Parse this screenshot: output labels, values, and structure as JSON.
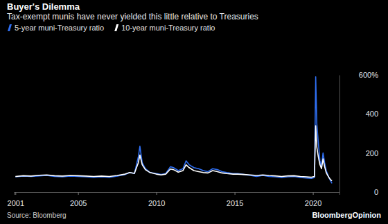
{
  "chart_data": {
    "type": "line",
    "title": "Buyer's Dilemma",
    "subtitle": "Tax-exempt munis have never yielded this little relative to Treasuries",
    "source": "Source: Bloomberg",
    "logo": "BloombergOpinion",
    "legend": "top-left",
    "grid": false,
    "x": [
      2001.0,
      2001.5,
      2002.0,
      2002.5,
      2003.0,
      2003.5,
      2004.0,
      2004.5,
      2005.0,
      2005.5,
      2006.0,
      2006.5,
      2007.0,
      2007.5,
      2008.0,
      2008.3,
      2008.6,
      2008.85,
      2008.95,
      2009.1,
      2009.3,
      2009.6,
      2010.0,
      2010.3,
      2010.6,
      2010.9,
      2011.1,
      2011.4,
      2011.7,
      2011.9,
      2012.1,
      2012.4,
      2012.7,
      2013.0,
      2013.3,
      2013.6,
      2013.9,
      2014.2,
      2014.5,
      2014.9,
      2015.2,
      2015.6,
      2016.0,
      2016.4,
      2016.8,
      2017.2,
      2017.6,
      2018.0,
      2018.4,
      2018.8,
      2019.2,
      2019.6,
      2019.9,
      2020.1,
      2020.18,
      2020.25,
      2020.35,
      2020.45,
      2020.55,
      2020.65,
      2020.75,
      2020.85,
      2020.95,
      2021.05,
      2021.15,
      2021.22
    ],
    "series": [
      {
        "name": "5-year muni-Treasury ratio",
        "color": "#2f6ff2",
        "values": [
          78,
          82,
          80,
          83,
          85,
          80,
          78,
          82,
          80,
          78,
          76,
          78,
          76,
          82,
          90,
          100,
          95,
          180,
          235,
          150,
          120,
          100,
          95,
          90,
          95,
          130,
          125,
          110,
          120,
          160,
          140,
          125,
          120,
          110,
          105,
          120,
          115,
          105,
          100,
          95,
          95,
          90,
          85,
          80,
          85,
          80,
          78,
          75,
          78,
          80,
          75,
          72,
          70,
          75,
          590,
          350,
          250,
          160,
          130,
          200,
          150,
          110,
          90,
          70,
          55,
          45
        ]
      },
      {
        "name": "10-year muni-Treasury ratio",
        "color": "#ffffff",
        "values": [
          80,
          84,
          82,
          86,
          88,
          84,
          82,
          85,
          84,
          82,
          80,
          82,
          80,
          85,
          92,
          100,
          96,
          150,
          190,
          140,
          115,
          100,
          92,
          88,
          92,
          118,
          115,
          102,
          110,
          140,
          125,
          110,
          105,
          100,
          98,
          110,
          105,
          98,
          95,
          92,
          92,
          90,
          88,
          85,
          88,
          85,
          83,
          80,
          83,
          84,
          80,
          78,
          76,
          80,
          340,
          230,
          180,
          140,
          120,
          170,
          130,
          100,
          85,
          72,
          62,
          58
        ]
      }
    ],
    "xlim": [
      2000.9,
      2021.7
    ],
    "xticks": [
      2001,
      2005,
      2010,
      2015,
      2020
    ],
    "ylim": [
      0,
      600
    ],
    "yticks": [
      0,
      200,
      400,
      {
        "value": 600,
        "label": "600%"
      }
    ]
  }
}
